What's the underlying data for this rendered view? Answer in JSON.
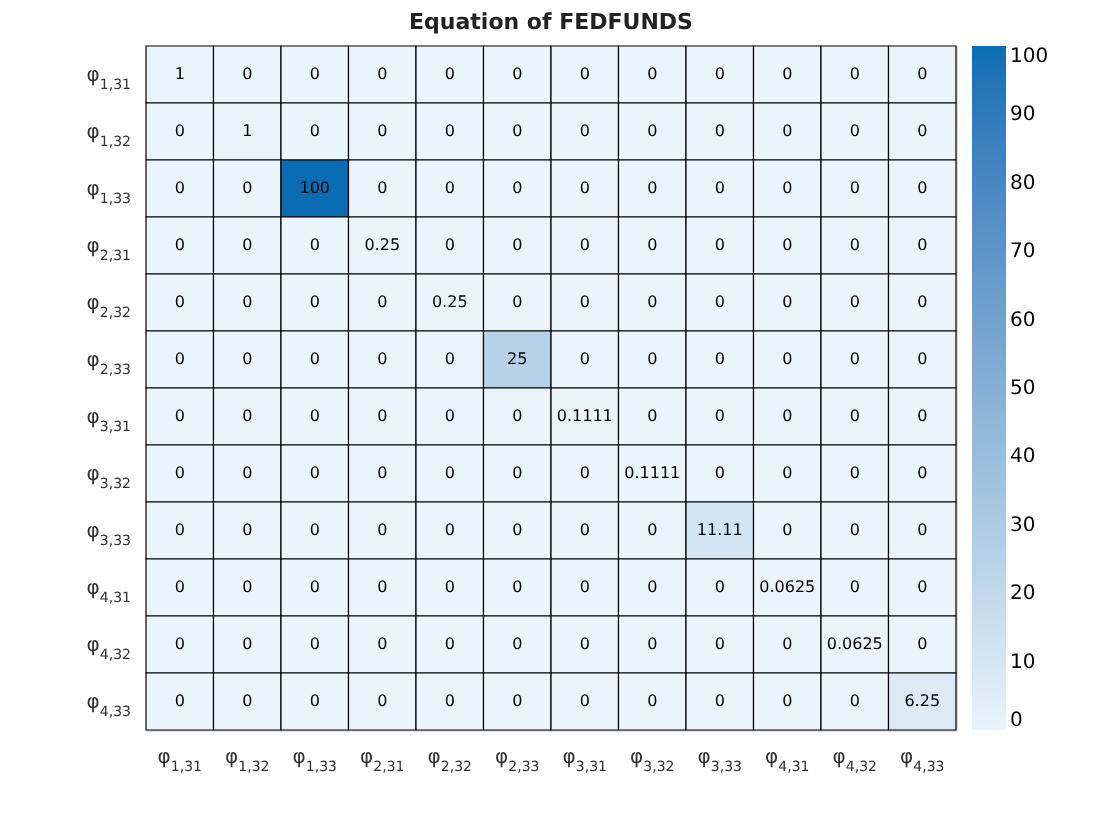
{
  "chart_data": {
    "type": "heatmap",
    "title": "Equation of FEDFUNDS",
    "categories": [
      "φ$_{1,31}$",
      "φ$_{1,32}$",
      "φ$_{1,33}$",
      "φ$_{2,31}$",
      "φ$_{2,32}$",
      "φ$_{2,33}$",
      "φ$_{3,31}$",
      "φ$_{3,32}$",
      "φ$_{3,33}$",
      "φ$_{4,31}$",
      "φ$_{4,32}$",
      "φ$_{4,33}$"
    ],
    "y_categories": [
      "φ$_{1,31}$",
      "φ$_{1,32}$",
      "φ$_{1,33}$",
      "φ$_{2,31}$",
      "φ$_{2,32}$",
      "φ$_{2,33}$",
      "φ$_{3,31}$",
      "φ$_{3,32}$",
      "φ$_{3,33}$",
      "φ$_{4,31}$",
      "φ$_{4,32}$",
      "φ$_{4,33}$"
    ],
    "cells": [
      [
        1,
        0,
        0,
        0,
        0,
        0,
        0,
        0,
        0,
        0,
        0,
        0
      ],
      [
        0,
        1,
        0,
        0,
        0,
        0,
        0,
        0,
        0,
        0,
        0,
        0
      ],
      [
        0,
        0,
        100,
        0,
        0,
        0,
        0,
        0,
        0,
        0,
        0,
        0
      ],
      [
        0,
        0,
        0,
        0.25,
        0,
        0,
        0,
        0,
        0,
        0,
        0,
        0
      ],
      [
        0,
        0,
        0,
        0,
        0.25,
        0,
        0,
        0,
        0,
        0,
        0,
        0
      ],
      [
        0,
        0,
        0,
        0,
        0,
        25,
        0,
        0,
        0,
        0,
        0,
        0
      ],
      [
        0,
        0,
        0,
        0,
        0,
        0,
        0.1111,
        0,
        0,
        0,
        0,
        0
      ],
      [
        0,
        0,
        0,
        0,
        0,
        0,
        0,
        0.1111,
        0,
        0,
        0,
        0
      ],
      [
        0,
        0,
        0,
        0,
        0,
        0,
        0,
        0,
        11.11,
        0,
        0,
        0
      ],
      [
        0,
        0,
        0,
        0,
        0,
        0,
        0,
        0,
        0,
        0.0625,
        0,
        0
      ],
      [
        0,
        0,
        0,
        0,
        0,
        0,
        0,
        0,
        0,
        0,
        0.0625,
        0
      ],
      [
        0,
        0,
        0,
        0,
        0,
        0,
        0,
        0,
        0,
        0,
        0,
        6.25
      ]
    ],
    "clim": [
      0,
      100
    ],
    "cticks": [
      0,
      10,
      20,
      30,
      40,
      50,
      60,
      70,
      80,
      90,
      100
    ],
    "data_labels": true
  }
}
